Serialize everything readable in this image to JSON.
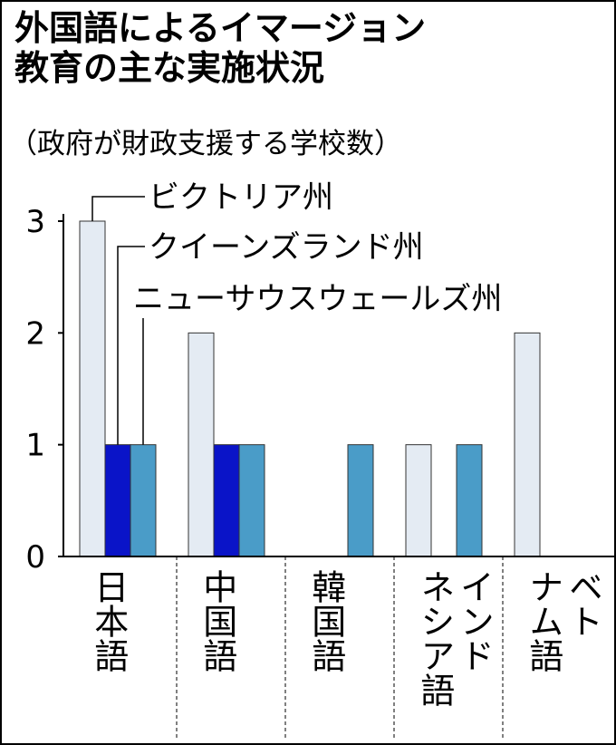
{
  "chart_data": {
    "type": "bar",
    "title": "外国語によるイマージョン\n教育の主な実施状況",
    "subtitle": "（政府が財政支援する学校数）",
    "categories": [
      "日本語",
      "中国語",
      "韓国語",
      "インド\nネシア語",
      "ベト\nナム語"
    ],
    "series": [
      {
        "name": "ビクトリア州",
        "color": "#e4ebf3",
        "values": [
          3,
          2,
          0,
          1,
          2
        ]
      },
      {
        "name": "クイーンズランド州",
        "color": "#0a14c8",
        "values": [
          1,
          1,
          0,
          0,
          0
        ]
      },
      {
        "name": "ニューサウスウェールズ州",
        "color": "#4a9cc8",
        "values": [
          1,
          1,
          1,
          1,
          0
        ]
      }
    ],
    "ylim": [
      0,
      3
    ],
    "yticks": [
      0,
      1,
      2,
      3
    ]
  }
}
